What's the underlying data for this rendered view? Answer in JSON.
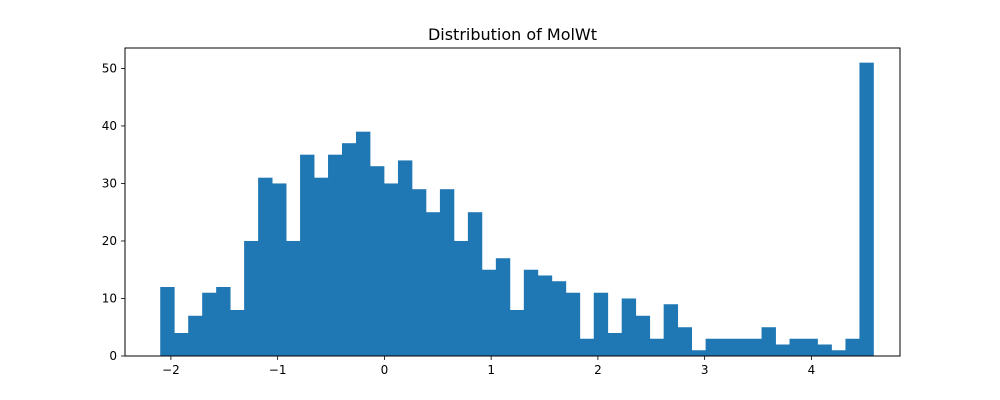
{
  "chart_data": {
    "type": "bar",
    "title": "Distribution of MolWt",
    "xlabel": "",
    "ylabel": "",
    "bar_color": "#1f77b4",
    "bin_start": -2.1,
    "bin_width": 0.131,
    "counts": [
      12,
      4,
      7,
      11,
      12,
      8,
      20,
      31,
      30,
      20,
      35,
      31,
      35,
      37,
      39,
      33,
      30,
      34,
      29,
      25,
      29,
      20,
      25,
      15,
      17,
      8,
      15,
      14,
      13,
      11,
      3,
      11,
      4,
      10,
      7,
      3,
      9,
      5,
      1,
      3,
      3,
      3,
      3,
      5,
      2,
      3,
      3,
      2,
      1,
      3,
      51
    ],
    "xlim": [
      -2.43,
      4.83
    ],
    "ylim": [
      0,
      53.55
    ],
    "x_ticks": [
      -2,
      -1,
      0,
      1,
      2,
      3,
      4
    ],
    "x_tick_labels": [
      "−2",
      "−1",
      "0",
      "1",
      "2",
      "3",
      "4"
    ],
    "y_ticks": [
      0,
      10,
      20,
      30,
      40,
      50
    ],
    "y_tick_labels": [
      "0",
      "10",
      "20",
      "30",
      "40",
      "50"
    ],
    "grid": false,
    "legend": false
  }
}
